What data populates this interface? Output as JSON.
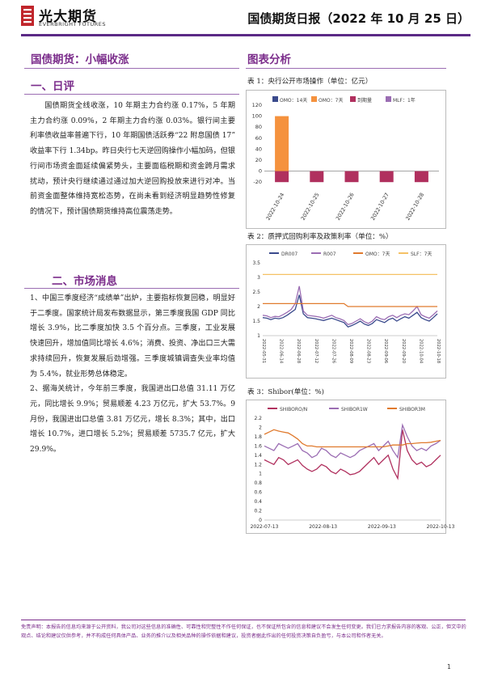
{
  "header": {
    "logo_cn": "光大期货",
    "logo_en": "EVERBRIGHT FUTURES",
    "doc_title": "国债期货日报（2022 年 10 月 25 日）",
    "accent_color": "#5b2a86",
    "logo_color": "#c0262c"
  },
  "left": {
    "main_title": "国债期货：小幅收涨",
    "sec1_title": "一、日评",
    "sec1_paragraphs": [
      "国债期货全线收涨，10 年期主力合约涨 0.17%，5 年期主力合约涨 0.09%，2 年期主力合约涨 0.03%。银行间主要利率债收益率普遍下行，10 年期国债活跃券“22 附息国债 17” 收益率下行 1.34bp。昨日央行七天逆回购操作小幅加码，但银行间市场资金面延续偏紧势头，主要面临税期和资金跨月需求扰动，预计央行继续通过通过加大逆回购投放来进行对冲。当前资金面整体维持宽松态势，在尚未看到经济明显趋势性修复的情况下，预计国债期货维持高位震荡走势。"
    ],
    "sec2_title": "二、市场消息",
    "sec2_paragraphs": [
      "1、中国三季度经济“成绩单”出炉，主要指标恢复回稳，明显好于二季度。国家统计局发布数据显示，第三季度我国 GDP 同比增长 3.9%，比二季度加快 3.5 个百分点。三季度，工业发展快速回升，增加值同比增长 4.6%；消费、投资、净出口三大需求持续回升，恢复发展后劲增强。三季度城镇调查失业率均值为 5.4%，就业形势总体稳定。",
      "2、据海关统计，今年前三季度，我国进出口总值 31.11 万亿元，同比增长 9.9%；贸易顺差 4.23 万亿元，扩大 53.7%。9 月份，我国进出口总值 3.81 万亿元，增长 8.3%；其中，出口增长 10.7%，进口增长 5.2%；贸易顺差 5735.7 亿元，扩大 29.9%。"
    ]
  },
  "right": {
    "title": "图表分析",
    "fig1_caption": "表 1：央行公开市场操作（单位：亿元）",
    "fig2_caption": "表 2：质押式回购利率及政策利率（单位：%）",
    "fig3_caption": "表 3：Shibor(单位：%)"
  },
  "chart_data": [
    {
      "type": "bar",
      "legend": [
        "OMO：14天",
        "OMO：7天",
        "到期量",
        "MLF：1年"
      ],
      "categories": [
        "2022-10-24",
        "2022-10-25",
        "2022-10-26",
        "2022-10-27",
        "2022-10-28"
      ],
      "series": [
        {
          "name": "OMO：14天",
          "values": [
            0,
            0,
            0,
            0,
            0
          ],
          "color": "#3a4a8c"
        },
        {
          "name": "OMO：7天",
          "values": [
            100,
            0,
            0,
            0,
            0
          ],
          "color": "#f5923e"
        },
        {
          "name": "到期量",
          "values": [
            -20,
            -20,
            -20,
            -20,
            -20
          ],
          "color": "#b0305e"
        },
        {
          "name": "MLF：1年",
          "values": [
            0,
            0,
            0,
            0,
            0
          ],
          "color": "#9b6db3"
        }
      ],
      "yticks": [
        -20,
        0,
        20,
        40,
        60,
        80,
        100,
        120
      ],
      "ylim": [
        -30,
        120
      ]
    },
    {
      "type": "line",
      "legend": [
        "DR007",
        "R007",
        "OMO：7天",
        "SLF：7天"
      ],
      "xticks": [
        "2022-05-31",
        "2022-06-14",
        "2022-06-28",
        "2022-07-12",
        "2022-07-26",
        "2022-08-09",
        "2022-08-23",
        "2022-09-06",
        "2022-09-20",
        "2022-10-04",
        "2022-10-18"
      ],
      "yticks": [
        1,
        1.5,
        2,
        2.5,
        3,
        3.5
      ],
      "ylim": [
        1,
        3.5
      ],
      "series": [
        {
          "name": "DR007",
          "color": "#3a4a8c",
          "values": [
            1.62,
            1.6,
            1.55,
            1.6,
            1.58,
            1.62,
            1.7,
            1.8,
            1.9,
            2.4,
            1.75,
            1.62,
            1.6,
            1.58,
            1.55,
            1.52,
            1.56,
            1.6,
            1.55,
            1.5,
            1.45,
            1.3,
            1.35,
            1.42,
            1.5,
            1.4,
            1.35,
            1.42,
            1.55,
            1.5,
            1.45,
            1.55,
            1.6,
            1.5,
            1.58,
            1.65,
            1.6,
            1.7,
            1.8,
            1.62,
            1.55,
            1.5,
            1.62,
            1.75
          ]
        },
        {
          "name": "R007",
          "color": "#9b6db3",
          "values": [
            1.7,
            1.68,
            1.62,
            1.66,
            1.65,
            1.72,
            1.8,
            1.9,
            2.1,
            2.7,
            1.85,
            1.7,
            1.68,
            1.66,
            1.64,
            1.6,
            1.65,
            1.7,
            1.62,
            1.58,
            1.52,
            1.38,
            1.42,
            1.5,
            1.58,
            1.48,
            1.42,
            1.5,
            1.65,
            1.58,
            1.55,
            1.65,
            1.7,
            1.62,
            1.7,
            1.75,
            1.72,
            1.85,
            2.0,
            1.72,
            1.65,
            1.6,
            1.72,
            1.85
          ]
        },
        {
          "name": "OMO：7天",
          "color": "#e07a2e",
          "values": [
            2.1,
            2.1,
            2.1,
            2.1,
            2.1,
            2.1,
            2.1,
            2.1,
            2.1,
            2.1,
            2.1,
            2.1,
            2.1,
            2.1,
            2.1,
            2.1,
            2.1,
            2.1,
            2.1,
            2.1,
            2.1,
            2.0,
            2.0,
            2.0,
            2.0,
            2.0,
            2.0,
            2.0,
            2.0,
            2.0,
            2.0,
            2.0,
            2.0,
            2.0,
            2.0,
            2.0,
            2.0,
            2.0,
            2.0,
            2.0,
            2.0,
            2.0,
            2.0,
            2.0
          ]
        },
        {
          "name": "SLF：7天",
          "color": "#f5c165",
          "values": [
            3.1,
            3.1,
            3.1,
            3.1,
            3.1,
            3.1,
            3.1,
            3.1,
            3.1,
            3.1,
            3.1,
            3.1,
            3.1,
            3.1,
            3.1,
            3.1,
            3.1,
            3.1,
            3.1,
            3.1,
            3.1,
            3.1,
            3.1,
            3.1,
            3.1,
            3.1,
            3.1,
            3.1,
            3.1,
            3.1,
            3.1,
            3.1,
            3.1,
            3.1,
            3.1,
            3.1,
            3.1,
            3.1,
            3.1,
            3.1,
            3.1,
            3.1,
            3.1,
            3.1
          ]
        }
      ]
    },
    {
      "type": "line",
      "legend": [
        "SHIBORO/N",
        "SHIBOR1W",
        "SHIBOR3M"
      ],
      "xticks": [
        "2022-07-13",
        "2022-08-13",
        "2022-09-13",
        "2022-10-13"
      ],
      "yticks": [
        0,
        0.2,
        0.4,
        0.6,
        0.8,
        1,
        1.2,
        1.4,
        1.6,
        1.8,
        2,
        2.2
      ],
      "ylim": [
        0,
        2.2
      ],
      "series": [
        {
          "name": "SHIBORO/N",
          "color": "#b0305e",
          "values": [
            1.3,
            1.25,
            1.2,
            1.35,
            1.3,
            1.2,
            1.25,
            1.3,
            1.18,
            1.1,
            1.05,
            1.1,
            1.2,
            1.15,
            1.05,
            1.0,
            1.1,
            1.05,
            0.98,
            1.0,
            1.05,
            1.15,
            1.25,
            1.35,
            1.2,
            1.3,
            1.4,
            1.1,
            0.9,
            1.95,
            1.5,
            1.3,
            1.2,
            1.25,
            1.15,
            1.2,
            1.3,
            1.4
          ]
        },
        {
          "name": "SHIBOR1W",
          "color": "#9b6db3",
          "values": [
            1.6,
            1.55,
            1.5,
            1.65,
            1.6,
            1.55,
            1.6,
            1.65,
            1.5,
            1.45,
            1.35,
            1.4,
            1.55,
            1.5,
            1.4,
            1.35,
            1.45,
            1.4,
            1.35,
            1.4,
            1.5,
            1.55,
            1.6,
            1.65,
            1.5,
            1.6,
            1.7,
            1.5,
            1.35,
            2.05,
            1.8,
            1.6,
            1.5,
            1.55,
            1.5,
            1.6,
            1.65,
            1.72
          ]
        },
        {
          "name": "SHIBOR3M",
          "color": "#e07a2e",
          "values": [
            1.85,
            1.9,
            1.95,
            1.92,
            1.9,
            1.88,
            1.82,
            1.75,
            1.65,
            1.6,
            1.6,
            1.58,
            1.58,
            1.58,
            1.58,
            1.58,
            1.58,
            1.58,
            1.58,
            1.58,
            1.58,
            1.58,
            1.58,
            1.58,
            1.58,
            1.58,
            1.6,
            1.62,
            1.62,
            1.62,
            1.65,
            1.65,
            1.66,
            1.67,
            1.67,
            1.68,
            1.7,
            1.72
          ]
        }
      ]
    }
  ],
  "footer": {
    "disclaimer": "免责声明：本报告的信息均来源于公开资料，我公司对这些信息的准确性、可靠性和完整性不作任何保证，也不保证所包含的信息和建议不会发生任何变更。我们已力求报告内容的客观、公正，但文中的观点、结论和建议仅供参考，并不构成任何具体产品、业务的推介以及相关品种的操作依据和建议，投资者据此作出的任何投资决策自负盈亏，与本公司和作者无关。",
    "page_number": "1"
  }
}
